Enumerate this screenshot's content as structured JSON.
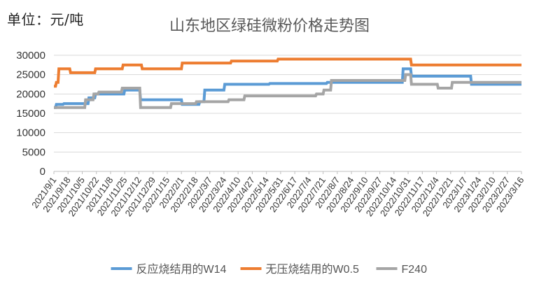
{
  "chart_data": {
    "type": "line",
    "title": "山东地区绿硅微粉价格走势图",
    "unit_label": "单位：元/吨",
    "ylim": [
      0,
      30000
    ],
    "y_ticks": [
      0,
      5000,
      10000,
      15000,
      20000,
      25000,
      30000
    ],
    "y_tick_labels": [
      "0",
      "5000",
      "10000",
      "15000",
      "20000",
      "25000",
      "30000"
    ],
    "x_tick_labels": [
      "2021/9/1",
      "2021/9/18",
      "2021/10/5",
      "2021/10/22",
      "2021/11/8",
      "2021/11/25",
      "2021/12/12",
      "2021/12/29",
      "2022/1/15",
      "2022/2/1",
      "2022/2/18",
      "2022/3/7",
      "2022/3/24",
      "2022/4/10",
      "2022/4/27",
      "2022/5/14",
      "2022/5/31",
      "2022/6/17",
      "2022/7/4",
      "2022/7/21",
      "2022/8/7",
      "2022/8/24",
      "2022/9/10",
      "2022/9/27",
      "2022/10/14",
      "2022/10/31",
      "2022/11/17",
      "2022/12/4",
      "2022/12/21",
      "2023/1/7",
      "2023/1/24",
      "2023/2/10",
      "2023/2/27",
      "2023/3/16"
    ],
    "x_range": [
      "2021/9/1",
      "2023/3/16"
    ],
    "grid": true,
    "legend_position": "bottom",
    "series": [
      {
        "name": "反应烧结用的W14",
        "color": "#5b9bd5",
        "points": [
          [
            "2021/9/1",
            16500
          ],
          [
            "2021/9/3",
            16500
          ],
          [
            "2021/9/4",
            17300
          ],
          [
            "2021/9/12",
            17300
          ],
          [
            "2021/9/13",
            17500
          ],
          [
            "2021/10/12",
            17500
          ],
          [
            "2021/10/13",
            19000
          ],
          [
            "2021/10/20",
            19000
          ],
          [
            "2021/10/21",
            20000
          ],
          [
            "2021/11/24",
            20000
          ],
          [
            "2021/11/25",
            21000
          ],
          [
            "2021/12/13",
            21000
          ],
          [
            "2021/12/14",
            18500
          ],
          [
            "2022/2/1",
            18500
          ],
          [
            "2022/2/2",
            17300
          ],
          [
            "2022/2/22",
            17300
          ],
          [
            "2022/2/23",
            18000
          ],
          [
            "2022/2/28",
            18000
          ],
          [
            "2022/3/1",
            21000
          ],
          [
            "2022/3/24",
            21000
          ],
          [
            "2022/3/25",
            22500
          ],
          [
            "2022/5/17",
            22500
          ],
          [
            "2022/5/18",
            22700
          ],
          [
            "2022/7/25",
            22700
          ],
          [
            "2022/7/26",
            23000
          ],
          [
            "2022/10/24",
            23000
          ],
          [
            "2022/10/25",
            26500
          ],
          [
            "2022/11/3",
            26500
          ],
          [
            "2022/11/4",
            24600
          ],
          [
            "2023/1/14",
            24600
          ],
          [
            "2023/1/15",
            22500
          ],
          [
            "2023/3/16",
            22500
          ]
        ]
      },
      {
        "name": "无压烧结用的W0.5",
        "color": "#ed7d31",
        "points": [
          [
            "2021/9/1",
            22000
          ],
          [
            "2021/9/3",
            22000
          ],
          [
            "2021/9/4",
            23000
          ],
          [
            "2021/9/6",
            23000
          ],
          [
            "2021/9/7",
            26500
          ],
          [
            "2021/9/20",
            26500
          ],
          [
            "2021/9/21",
            25500
          ],
          [
            "2021/10/20",
            25500
          ],
          [
            "2021/10/21",
            26500
          ],
          [
            "2021/11/22",
            26500
          ],
          [
            "2021/11/23",
            27500
          ],
          [
            "2021/12/15",
            27500
          ],
          [
            "2021/12/16",
            26500
          ],
          [
            "2022/2/1",
            26500
          ],
          [
            "2022/2/2",
            28000
          ],
          [
            "2022/4/1",
            28000
          ],
          [
            "2022/4/2",
            28500
          ],
          [
            "2022/5/27",
            28500
          ],
          [
            "2022/5/28",
            29000
          ],
          [
            "2022/11/3",
            29000
          ],
          [
            "2022/11/4",
            27500
          ],
          [
            "2023/3/16",
            27500
          ]
        ]
      },
      {
        "name": "F240",
        "color": "#a5a5a5",
        "points": [
          [
            "2021/9/1",
            16500
          ],
          [
            "2021/10/8",
            16500
          ],
          [
            "2021/10/9",
            18500
          ],
          [
            "2021/10/18",
            18500
          ],
          [
            "2021/10/19",
            20000
          ],
          [
            "2021/10/24",
            20000
          ],
          [
            "2021/10/25",
            20500
          ],
          [
            "2021/11/21",
            20500
          ],
          [
            "2021/11/22",
            21500
          ],
          [
            "2021/12/13",
            21500
          ],
          [
            "2021/12/14",
            16500
          ],
          [
            "2022/1/19",
            16500
          ],
          [
            "2022/1/20",
            17500
          ],
          [
            "2022/2/18",
            17500
          ],
          [
            "2022/2/19",
            18000
          ],
          [
            "2022/3/29",
            18000
          ],
          [
            "2022/3/30",
            18500
          ],
          [
            "2022/4/17",
            18500
          ],
          [
            "2022/4/18",
            19500
          ],
          [
            "2022/7/12",
            19500
          ],
          [
            "2022/7/13",
            20000
          ],
          [
            "2022/7/21",
            20000
          ],
          [
            "2022/7/22",
            21000
          ],
          [
            "2022/7/30",
            21000
          ],
          [
            "2022/7/31",
            23500
          ],
          [
            "2022/10/27",
            23500
          ],
          [
            "2022/10/28",
            25000
          ],
          [
            "2022/11/3",
            25000
          ],
          [
            "2022/11/4",
            22500
          ],
          [
            "2022/12/5",
            22500
          ],
          [
            "2022/12/6",
            21500
          ],
          [
            "2022/12/22",
            21500
          ],
          [
            "2022/12/23",
            23000
          ],
          [
            "2023/3/16",
            23000
          ]
        ]
      }
    ]
  }
}
